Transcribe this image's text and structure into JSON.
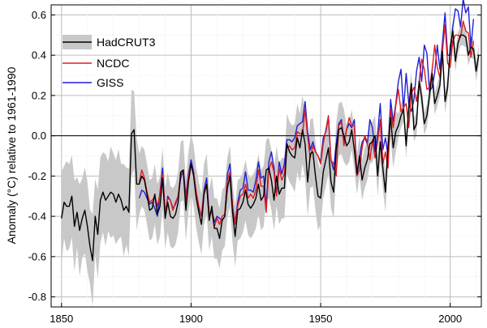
{
  "chart_data": {
    "type": "line",
    "title": "",
    "xlabel": "",
    "ylabel": "Anomaly (°C) relative to 1961-1990",
    "xlim": [
      1846,
      2012
    ],
    "ylim": [
      -0.85,
      0.65
    ],
    "xticks": [
      1850,
      1900,
      1950,
      2000
    ],
    "yticks": [
      -0.8,
      -0.6,
      -0.4,
      -0.2,
      0.0,
      0.2,
      0.4,
      0.6
    ],
    "ytick_labels": [
      "-0.8",
      "-0.6",
      "-0.4",
      "-0.2",
      "0.0",
      "0.2",
      "0.4",
      "0.6"
    ],
    "grid": true,
    "legend_position": "top-left",
    "legend": [
      {
        "label": "HadCRUT3",
        "color": "#000000",
        "band_color": "#c8c8c8"
      },
      {
        "label": "NCDC",
        "color": "#e31a1c"
      },
      {
        "label": "GISS",
        "color": "#1f1fd6"
      }
    ],
    "series": [
      {
        "name": "HadCRUT3",
        "color": "#000000",
        "start_year": 1850,
        "values": [
          -0.41,
          -0.33,
          -0.35,
          -0.35,
          -0.3,
          -0.45,
          -0.38,
          -0.47,
          -0.41,
          -0.37,
          -0.45,
          -0.55,
          -0.62,
          -0.4,
          -0.49,
          -0.32,
          -0.28,
          -0.32,
          -0.3,
          -0.28,
          -0.29,
          -0.33,
          -0.29,
          -0.32,
          -0.37,
          -0.35,
          -0.38,
          0.01,
          0.03,
          -0.24,
          -0.24,
          -0.2,
          -0.22,
          -0.29,
          -0.37,
          -0.36,
          -0.29,
          -0.39,
          -0.35,
          -0.21,
          -0.41,
          -0.33,
          -0.4,
          -0.41,
          -0.39,
          -0.33,
          -0.18,
          -0.17,
          -0.37,
          -0.23,
          -0.14,
          -0.2,
          -0.31,
          -0.38,
          -0.44,
          -0.29,
          -0.24,
          -0.42,
          -0.35,
          -0.46,
          -0.46,
          -0.51,
          -0.42,
          -0.4,
          -0.26,
          -0.2,
          -0.38,
          -0.5,
          -0.37,
          -0.36,
          -0.33,
          -0.27,
          -0.34,
          -0.36,
          -0.34,
          -0.31,
          -0.24,
          -0.32,
          -0.3,
          -0.17,
          -0.16,
          -0.22,
          -0.32,
          -0.2,
          -0.29,
          -0.26,
          -0.26,
          -0.04,
          -0.08,
          -0.1,
          -0.11,
          -0.01,
          -0.06,
          0.03,
          -0.04,
          -0.23,
          -0.09,
          -0.08,
          -0.2,
          -0.3,
          -0.31,
          -0.18,
          -0.12,
          -0.06,
          -0.23,
          -0.28,
          -0.07,
          0.03,
          0.04,
          0.0,
          -0.05,
          -0.03,
          0.03,
          -0.07,
          -0.19,
          -0.1,
          -0.22,
          -0.16,
          -0.12,
          -0.04,
          -0.03,
          0.0,
          -0.2,
          -0.03,
          -0.16,
          -0.28,
          -0.05,
          0.09,
          -0.06,
          0.02,
          0.05,
          0.1,
          0.13,
          -0.05,
          0.14,
          0.26,
          0.03,
          0.06,
          0.27,
          0.19,
          0.06,
          0.1,
          0.2,
          0.31,
          0.16,
          0.2,
          0.25,
          0.42,
          0.17,
          0.24,
          0.44,
          0.52,
          0.37,
          0.46,
          0.5,
          0.5,
          0.49,
          0.4,
          0.44,
          0.43,
          0.32,
          0.4
        ]
      },
      {
        "name": "NCDC",
        "color": "#e31a1c",
        "start_year": 1880,
        "values": [
          -0.23,
          -0.17,
          -0.21,
          -0.28,
          -0.33,
          -0.32,
          -0.3,
          -0.35,
          -0.29,
          -0.19,
          -0.38,
          -0.31,
          -0.32,
          -0.37,
          -0.33,
          -0.3,
          -0.19,
          -0.18,
          -0.32,
          -0.2,
          -0.14,
          -0.19,
          -0.28,
          -0.35,
          -0.4,
          -0.28,
          -0.24,
          -0.39,
          -0.38,
          -0.45,
          -0.41,
          -0.44,
          -0.4,
          -0.39,
          -0.22,
          -0.18,
          -0.35,
          -0.44,
          -0.35,
          -0.3,
          -0.29,
          -0.24,
          -0.31,
          -0.29,
          -0.31,
          -0.27,
          -0.17,
          -0.25,
          -0.25,
          -0.38,
          -0.17,
          -0.13,
          -0.18,
          -0.3,
          -0.16,
          -0.22,
          -0.19,
          -0.06,
          -0.05,
          -0.07,
          -0.06,
          0.02,
          0.01,
          0.01,
          0.13,
          -0.01,
          -0.11,
          -0.05,
          -0.08,
          -0.1,
          -0.14,
          -0.04,
          0.03,
          0.1,
          -0.12,
          -0.14,
          -0.2,
          0.05,
          0.07,
          -0.05,
          0.03,
          0.09,
          0.05,
          0.05,
          -0.2,
          -0.17,
          -0.06,
          0.0,
          -0.03,
          -0.12,
          -0.02,
          -0.11,
          -0.03,
          0.08,
          -0.14,
          -0.08,
          -0.16,
          0.13,
          0.04,
          0.15,
          0.23,
          0.12,
          0.14,
          0.16,
          0.04,
          0.21,
          0.24,
          0.17,
          0.26,
          0.38,
          0.33,
          0.23,
          0.24,
          0.32,
          0.45,
          0.34,
          0.29,
          0.42,
          0.55,
          0.36,
          0.34,
          0.47,
          0.5,
          0.5,
          0.49,
          0.57,
          0.52,
          0.51,
          0.39,
          0.47
        ]
      },
      {
        "name": "GISS",
        "color": "#1f1fd6",
        "start_year": 1880,
        "values": [
          -0.31,
          -0.27,
          -0.28,
          -0.31,
          -0.34,
          -0.33,
          -0.36,
          -0.4,
          -0.28,
          -0.16,
          -0.39,
          -0.3,
          -0.32,
          -0.36,
          -0.34,
          -0.3,
          -0.21,
          -0.17,
          -0.3,
          -0.19,
          -0.12,
          -0.18,
          -0.29,
          -0.36,
          -0.4,
          -0.27,
          -0.21,
          -0.39,
          -0.37,
          -0.43,
          -0.4,
          -0.41,
          -0.42,
          -0.4,
          -0.19,
          -0.14,
          -0.35,
          -0.43,
          -0.33,
          -0.27,
          -0.26,
          -0.18,
          -0.27,
          -0.27,
          -0.28,
          -0.22,
          -0.13,
          -0.21,
          -0.2,
          -0.35,
          -0.13,
          -0.08,
          -0.16,
          -0.29,
          -0.13,
          -0.19,
          -0.14,
          -0.02,
          -0.02,
          -0.03,
          -0.01,
          0.05,
          0.06,
          0.07,
          0.17,
          0.02,
          -0.07,
          -0.03,
          -0.08,
          -0.1,
          -0.13,
          -0.01,
          0.02,
          0.09,
          -0.12,
          -0.17,
          -0.04,
          0.06,
          0.08,
          -0.03,
          0.03,
          0.06,
          0.04,
          0.08,
          -0.2,
          -0.11,
          -0.03,
          -0.01,
          -0.04,
          0.08,
          0.04,
          -0.08,
          0.01,
          0.16,
          -0.07,
          -0.01,
          -0.1,
          0.18,
          0.07,
          0.16,
          0.27,
          0.33,
          0.13,
          0.31,
          0.16,
          0.12,
          0.18,
          0.32,
          0.39,
          0.27,
          0.45,
          0.41,
          0.22,
          0.24,
          0.31,
          0.45,
          0.33,
          0.46,
          0.61,
          0.4,
          0.4,
          0.54,
          0.63,
          0.62,
          0.54,
          0.68,
          0.61,
          0.64,
          0.44,
          0.58
        ]
      }
    ],
    "uncertainty_band": {
      "series": "HadCRUT3",
      "start_year": 1850,
      "halfwidth_1850": 0.17,
      "halfwidth_1880": 0.15,
      "halfwidth_1940": 0.14,
      "halfwidth_1950": 0.13,
      "halfwidth_1960": 0.1,
      "halfwidth_1980": 0.06,
      "halfwidth_2009": 0.05
    }
  }
}
